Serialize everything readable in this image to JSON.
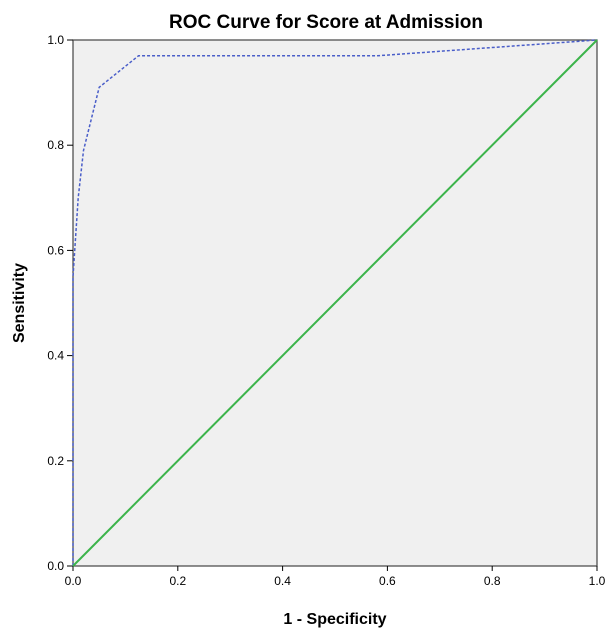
{
  "chart_data": {
    "type": "line",
    "title": "ROC Curve for Score at Admission",
    "xlabel": "1 - Specificity",
    "ylabel": "Sensitivity",
    "xlim": [
      0,
      1
    ],
    "ylim": [
      0,
      1
    ],
    "xticks": [
      "0.0",
      "0.2",
      "0.4",
      "0.6",
      "0.8",
      "1.0"
    ],
    "yticks": [
      "0.0",
      "0.2",
      "0.4",
      "0.6",
      "0.8",
      "1.0"
    ],
    "grid": false,
    "legend": "none",
    "plot_background": "#f0f0f0",
    "series": [
      {
        "style": "dashed",
        "color": "#4a5ec9",
        "x": [
          0.0,
          0.0,
          0.01,
          0.02,
          0.05,
          0.125,
          0.58,
          1.0
        ],
        "y": [
          0.0,
          0.55,
          0.7,
          0.79,
          0.91,
          0.97,
          0.97,
          1.0
        ]
      },
      {
        "style": "solid",
        "color": "#3cb44b",
        "x": [
          0.0,
          1.0
        ],
        "y": [
          0.0,
          1.0
        ]
      }
    ]
  }
}
